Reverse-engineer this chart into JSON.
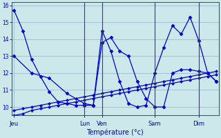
{
  "xlabel": "Température (°c)",
  "background_color": "#cce8ea",
  "line_color": "#0000cc",
  "grid_color": "#99bbcc",
  "y_min": 9.5,
  "y_max": 16.2,
  "yticks": [
    10,
    11,
    12,
    13,
    14,
    15,
    16
  ],
  "day_labels": [
    "Jeu",
    "Lun",
    "Ven",
    "Sam",
    "Dim"
  ],
  "day_x": [
    0,
    8,
    10,
    16,
    21
  ],
  "n_points": 24,
  "series_jagged1_x": [
    0,
    1,
    2,
    3,
    4,
    5,
    6,
    7,
    8,
    9,
    10,
    11,
    12,
    13,
    14,
    15,
    16,
    17,
    18,
    19,
    20,
    21,
    22,
    23
  ],
  "series_jagged1_y": [
    15.7,
    14.5,
    12.8,
    11.8,
    10.9,
    10.3,
    10.2,
    10.1,
    10.1,
    10.1,
    13.8,
    14.1,
    13.3,
    13.0,
    11.5,
    10.5,
    10.0,
    10.0,
    12.0,
    12.2,
    12.2,
    12.1,
    12.0,
    11.5
  ],
  "series_trend1_x": [
    0,
    1,
    2,
    3,
    4,
    5,
    6,
    7,
    8,
    9,
    10,
    11,
    12,
    13,
    14,
    15,
    16,
    17,
    18,
    19,
    20,
    21,
    22,
    23
  ],
  "series_trend1_y": [
    9.8,
    9.9,
    10.0,
    10.1,
    10.2,
    10.3,
    10.4,
    10.5,
    10.6,
    10.7,
    10.8,
    10.9,
    11.0,
    11.1,
    11.2,
    11.3,
    11.4,
    11.5,
    11.6,
    11.7,
    11.8,
    11.9,
    12.0,
    12.1
  ],
  "series_trend2_x": [
    0,
    1,
    2,
    3,
    4,
    5,
    6,
    7,
    8,
    9,
    10,
    11,
    12,
    13,
    14,
    15,
    16,
    17,
    18,
    19,
    20,
    21,
    22,
    23
  ],
  "series_trend2_y": [
    9.5,
    9.6,
    9.8,
    9.9,
    10.0,
    10.1,
    10.2,
    10.3,
    10.4,
    10.5,
    10.6,
    10.7,
    10.8,
    10.9,
    11.0,
    11.1,
    11.2,
    11.3,
    11.4,
    11.5,
    11.6,
    11.7,
    11.8,
    11.9
  ],
  "series_jagged2_x": [
    0,
    2,
    4,
    6,
    8,
    9,
    10,
    11,
    12,
    13,
    14,
    15,
    16,
    17,
    18,
    19,
    20,
    21,
    22,
    23
  ],
  "series_jagged2_y": [
    13.0,
    12.0,
    11.7,
    10.8,
    10.2,
    10.1,
    14.5,
    13.3,
    11.5,
    10.2,
    10.0,
    10.1,
    12.0,
    13.5,
    14.8,
    14.3,
    15.3,
    13.9,
    12.0,
    11.5
  ]
}
